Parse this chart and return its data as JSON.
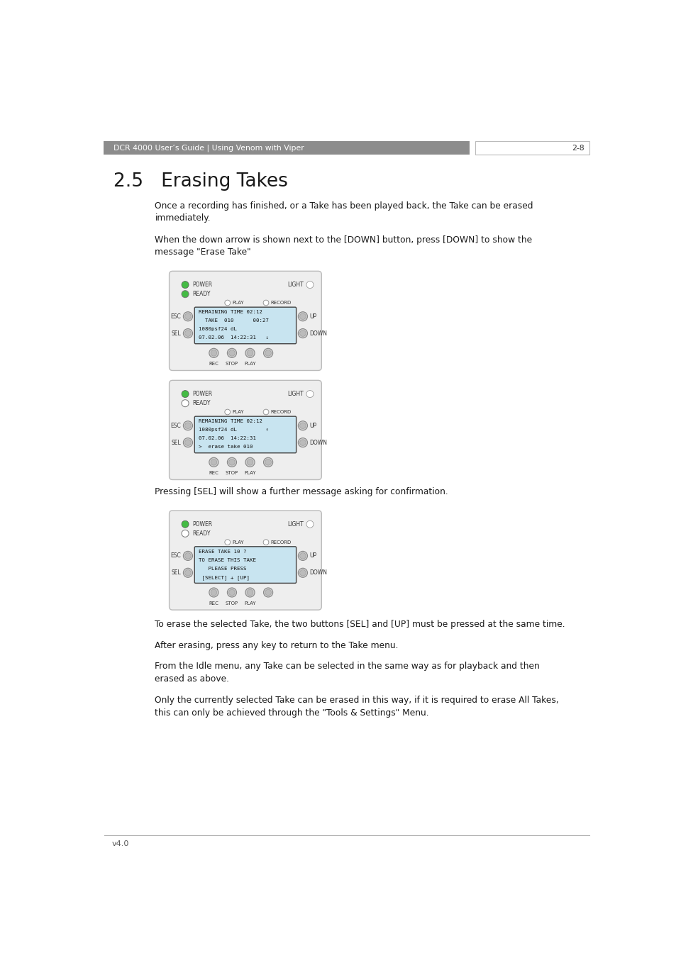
{
  "page_width": 9.54,
  "page_height": 13.51,
  "bg_color": "#ffffff",
  "header_bg": "#8c8c8c",
  "header_text_left": "DCR 4000 User’s Guide | Using Venom with Viper",
  "header_text_right": "2-8",
  "header_text_color": "#ffffff",
  "footer_text": "v4.0",
  "footer_line_color": "#aaaaaa",
  "section_title": "2.5   Erasing Takes",
  "para1": "Once a recording has finished, or a Take has been played back, the Take can be erased\nimmediately.",
  "para2": "When the down arrow is shown next to the [DOWN] button, press [DOWN] to show the\nmessage \"Erase Take\"",
  "para3": "Pressing [SEL] will show a further message asking for confirmation.",
  "para4": "To erase the selected Take, the two buttons [SEL] and [UP] must be pressed at the same time.",
  "para5": "After erasing, press any key to return to the Take menu.",
  "para6": "From the Idle menu, any Take can be selected in the same way as for playback and then\nerased as above.",
  "para7": "Only the currently selected Take can be erased in this way, if it is required to erase All Takes,\nthis can only be achieved through the \"Tools & Settings\" Menu.",
  "device_bg": "#eeeeee",
  "device_border": "#bbbbbb",
  "screen_bg": "#c8e4f0",
  "screen_border": "#666666",
  "green_led": "#44bb44",
  "white_led": "#ffffff",
  "screen1_lines": [
    "REMAINING TIME 02:12",
    "  TAKE  010      00:27",
    "1080psf24 dL",
    "07.02.06  14:22:31   ↓"
  ],
  "screen2_lines": [
    "REMAINING TIME 02:12",
    "1080psf24 dL         ↑",
    "07.02.06  14:22:31",
    ">  erase take 010"
  ],
  "screen3_lines": [
    "ERASE TAKE 10 ?",
    "TO ERASE THIS TAKE",
    "   PLEASE PRESS",
    " [SELECT] + [UP]"
  ]
}
